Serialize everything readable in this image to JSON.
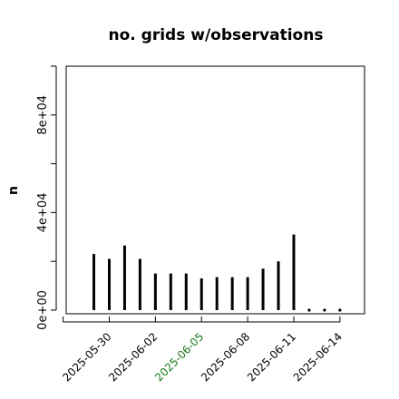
{
  "chart_data": {
    "type": "bar",
    "title": "no. grids w/observations",
    "ylabel": "n",
    "xlabel": "",
    "ylim": [
      -1500,
      100000
    ],
    "y_ticks": [
      0,
      20000,
      40000,
      60000,
      80000,
      100000
    ],
    "y_tick_labels": [
      "0e+00",
      "",
      "4e+04",
      "",
      "8e+04",
      ""
    ],
    "x_tick_labels": [
      {
        "label": "2025-05-30",
        "day": 0,
        "color": "#000000"
      },
      {
        "label": "2025-06-02",
        "day": 3,
        "color": "#000000"
      },
      {
        "label": "2025-06-05",
        "day": 6,
        "color": "#1a7a1a"
      },
      {
        "label": "2025-06-08",
        "day": 9,
        "color": "#000000"
      },
      {
        "label": "2025-06-11",
        "day": 12,
        "color": "#000000"
      },
      {
        "label": "2025-06-14",
        "day": 15,
        "color": "#000000"
      }
    ],
    "x_day_range": [
      -2.8,
      16.6
    ],
    "x_ticks_days": [
      -3,
      0,
      3,
      6,
      9,
      12,
      15
    ],
    "values": [
      {
        "day": -1,
        "value": 23000
      },
      {
        "day": 0,
        "value": 21000
      },
      {
        "day": 1,
        "value": 26500
      },
      {
        "day": 2,
        "value": 21000
      },
      {
        "day": 3,
        "value": 15000
      },
      {
        "day": 4,
        "value": 15000
      },
      {
        "day": 5,
        "value": 15000
      },
      {
        "day": 6,
        "value": 13000
      },
      {
        "day": 7,
        "value": 13500
      },
      {
        "day": 8,
        "value": 13500
      },
      {
        "day": 9,
        "value": 13500
      },
      {
        "day": 10,
        "value": 17000
      },
      {
        "day": 11,
        "value": 20000
      },
      {
        "day": 12,
        "value": 31000
      },
      {
        "day": 13,
        "value": 0
      },
      {
        "day": 14,
        "value": 0
      },
      {
        "day": 15,
        "value": 0
      }
    ],
    "bar_color": "#000000",
    "grid": false
  }
}
